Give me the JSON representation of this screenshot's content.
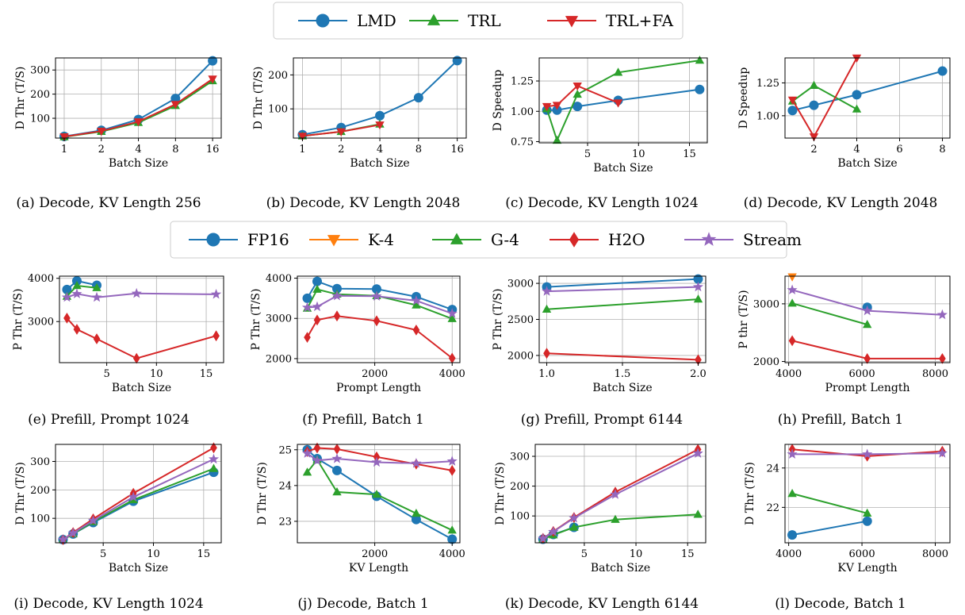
{
  "legends": [
    {
      "entries": [
        {
          "label": "LMD",
          "color": "#1f77b4",
          "marker": "circle"
        },
        {
          "label": "TRL",
          "color": "#2ca02c",
          "marker": "triangle-up"
        },
        {
          "label": "TRL+FA",
          "color": "#d62728",
          "marker": "triangle-down"
        }
      ]
    },
    {
      "entries": [
        {
          "label": "FP16",
          "color": "#1f77b4",
          "marker": "circle"
        },
        {
          "label": "K-4",
          "color": "#ff7f0e",
          "marker": "triangle-down"
        },
        {
          "label": "G-4",
          "color": "#2ca02c",
          "marker": "triangle-up"
        },
        {
          "label": "H2O",
          "color": "#d62728",
          "marker": "diamond"
        },
        {
          "label": "Stream",
          "color": "#9467bd",
          "marker": "star"
        }
      ]
    }
  ],
  "chart_data": [
    {
      "id": "a",
      "type": "line",
      "caption": "(a) Decode, KV Length 256",
      "xlabel": "Batch Size",
      "ylabel": "D Thr (T/S)",
      "xscale": "log2",
      "xlim": [
        0.85,
        18.8
      ],
      "ylim": [
        18,
        350
      ],
      "xticks": [
        1,
        2,
        4,
        8,
        16
      ],
      "xticklabels": [
        "1",
        "2",
        "4",
        "8",
        "16"
      ],
      "yticks": [
        100,
        200,
        300
      ],
      "yticklabels": [
        "100",
        "200",
        "300"
      ],
      "series": [
        {
          "name": "LMD",
          "x": [
            1,
            2,
            4,
            8,
            16
          ],
          "y": [
            25,
            50,
            95,
            182,
            338
          ]
        },
        {
          "name": "TRL",
          "x": [
            1,
            2,
            4,
            8,
            16
          ],
          "y": [
            23,
            45,
            82,
            152,
            255
          ]
        },
        {
          "name": "TRL+FA",
          "x": [
            1,
            2,
            4,
            8,
            16
          ],
          "y": [
            24,
            47,
            86,
            158,
            263
          ]
        }
      ]
    },
    {
      "id": "b",
      "type": "line",
      "caption": "(b) Decode, KV Length 2048",
      "xlabel": "Batch Size",
      "ylabel": "D Thr (T/S)",
      "xscale": "log2",
      "xlim": [
        0.85,
        18.8
      ],
      "ylim": [
        14,
        250
      ],
      "xticks": [
        1,
        2,
        4,
        8,
        16
      ],
      "xticklabels": [
        "1",
        "2",
        "4",
        "8",
        "16"
      ],
      "yticks": [
        100,
        200
      ],
      "yticklabels": [
        "100",
        "200"
      ],
      "series": [
        {
          "name": "LMD",
          "x": [
            1,
            2,
            4,
            8,
            16
          ],
          "y": [
            24,
            45,
            80,
            133,
            242
          ]
        },
        {
          "name": "TRL",
          "x": [
            1,
            2,
            4
          ],
          "y": [
            20,
            33,
            55
          ]
        },
        {
          "name": "TRL+FA",
          "x": [
            1,
            2,
            4
          ],
          "y": [
            20,
            33,
            53
          ]
        }
      ]
    },
    {
      "id": "c",
      "type": "line",
      "caption": "(c) Decode, KV Length 1024",
      "xlabel": "Batch Size",
      "ylabel": "D Speedup",
      "xscale": "linear",
      "xlim": [
        0.25,
        16.75
      ],
      "ylim": [
        0.74,
        1.44
      ],
      "xticks": [
        5,
        10,
        15
      ],
      "xticklabels": [
        "5",
        "10",
        "15"
      ],
      "yticks": [
        0.75,
        1.0,
        1.25
      ],
      "yticklabels": [
        "0.75",
        "1.00",
        "1.25"
      ],
      "series": [
        {
          "name": "LMD",
          "x": [
            1,
            2,
            4,
            8,
            16
          ],
          "y": [
            1.01,
            1.01,
            1.04,
            1.09,
            1.18
          ]
        },
        {
          "name": "TRL",
          "x": [
            1,
            2,
            4,
            8,
            16
          ],
          "y": [
            1.02,
            0.76,
            1.14,
            1.32,
            1.42
          ]
        },
        {
          "name": "TRL+FA",
          "x": [
            1,
            2,
            4,
            8
          ],
          "y": [
            1.04,
            1.05,
            1.21,
            1.07
          ]
        }
      ]
    },
    {
      "id": "d",
      "type": "line",
      "caption": "(d) Decode, KV Length 2048",
      "xlabel": "Batch Size",
      "ylabel": "D Speedup",
      "xscale": "linear",
      "xlim": [
        0.65,
        8.35
      ],
      "ylim": [
        0.83,
        1.44
      ],
      "xticks": [
        2,
        4,
        6,
        8
      ],
      "xticklabels": [
        "2",
        "4",
        "6",
        "8"
      ],
      "yticks": [
        1.0,
        1.25
      ],
      "yticklabels": [
        "1.00",
        "1.25"
      ],
      "series": [
        {
          "name": "LMD",
          "x": [
            1,
            2,
            4,
            8
          ],
          "y": [
            1.04,
            1.08,
            1.16,
            1.34
          ]
        },
        {
          "name": "TRL",
          "x": [
            1,
            2,
            4
          ],
          "y": [
            1.11,
            1.23,
            1.05
          ]
        },
        {
          "name": "TRL+FA",
          "x": [
            1,
            2,
            4
          ],
          "y": [
            1.12,
            0.84,
            1.44
          ]
        }
      ]
    },
    {
      "id": "e",
      "type": "line",
      "caption": "(e) Prefill, Prompt 1024",
      "xlabel": "Batch Size",
      "ylabel": "P Thr (T/S)",
      "xscale": "linear",
      "xlim": [
        0.25,
        16.75
      ],
      "ylim": [
        2050,
        4050
      ],
      "xticks": [
        5,
        10,
        15
      ],
      "xticklabels": [
        "5",
        "10",
        "15"
      ],
      "yticks": [
        3000,
        4000
      ],
      "yticklabels": [
        "3000",
        "4000"
      ],
      "series": [
        {
          "name": "FP16",
          "x": [
            1,
            2,
            4
          ],
          "y": [
            3740,
            3940,
            3840
          ]
        },
        {
          "name": "G-4",
          "x": [
            1,
            2,
            4
          ],
          "y": [
            3580,
            3830,
            3780
          ]
        },
        {
          "name": "H2O",
          "x": [
            1,
            2,
            4,
            8,
            16
          ],
          "y": [
            3080,
            2820,
            2600,
            2150,
            2670
          ]
        },
        {
          "name": "Stream",
          "x": [
            1,
            2,
            4,
            8,
            16
          ],
          "y": [
            3560,
            3640,
            3560,
            3650,
            3630
          ]
        }
      ]
    },
    {
      "id": "f",
      "type": "line",
      "caption": "(f) Prefill, Batch 1",
      "xlabel": "Prompt Length",
      "ylabel": "P Thr (T/S)",
      "xscale": "linear",
      "xlim": [
        0,
        4200
      ],
      "ylim": [
        1900,
        4050
      ],
      "xticks": [
        2000,
        4000
      ],
      "xticklabels": [
        "2000",
        "4000"
      ],
      "yticks": [
        2000,
        3000,
        4000
      ],
      "yticklabels": [
        "2000",
        "3000",
        "4000"
      ],
      "series": [
        {
          "name": "FP16",
          "x": [
            256,
            512,
            1024,
            2048,
            3072,
            4000
          ],
          "y": [
            3500,
            3920,
            3740,
            3730,
            3540,
            3220
          ]
        },
        {
          "name": "G-4",
          "x": [
            256,
            512,
            1024,
            2048,
            3072,
            4000
          ],
          "y": [
            3250,
            3720,
            3600,
            3560,
            3330,
            2990
          ]
        },
        {
          "name": "H2O",
          "x": [
            256,
            512,
            1024,
            2048,
            3072,
            4000
          ],
          "y": [
            2530,
            2960,
            3060,
            2940,
            2710,
            2010
          ]
        },
        {
          "name": "Stream",
          "x": [
            256,
            512,
            1024,
            2048,
            3072,
            4000
          ],
          "y": [
            3270,
            3290,
            3560,
            3550,
            3440,
            3120
          ]
        }
      ]
    },
    {
      "id": "g",
      "type": "line",
      "caption": "(g) Prefill, Prompt 6144",
      "xlabel": "Batch Size",
      "ylabel": "P Thr (T/S)",
      "xscale": "linear",
      "xlim": [
        0.95,
        2.05
      ],
      "ylim": [
        1900,
        3100
      ],
      "xticks": [
        1.0,
        1.5,
        2.0
      ],
      "xticklabels": [
        "1.0",
        "1.5",
        "2.0"
      ],
      "yticks": [
        2000,
        2500,
        3000
      ],
      "yticklabels": [
        "2000",
        "2500",
        "3000"
      ],
      "series": [
        {
          "name": "FP16",
          "x": [
            1,
            2
          ],
          "y": [
            2950,
            3060
          ]
        },
        {
          "name": "G-4",
          "x": [
            1,
            2
          ],
          "y": [
            2640,
            2780
          ]
        },
        {
          "name": "H2O",
          "x": [
            1,
            2
          ],
          "y": [
            2030,
            1940
          ]
        },
        {
          "name": "Stream",
          "x": [
            1,
            2
          ],
          "y": [
            2890,
            2950
          ]
        }
      ]
    },
    {
      "id": "h",
      "type": "line",
      "caption": "(h) Prefill, Batch 1",
      "xlabel": "Prompt Length",
      "ylabel": "P thr (T/S)",
      "xscale": "linear",
      "xlim": [
        3900,
        8400
      ],
      "ylim": [
        1980,
        3480
      ],
      "xticks": [
        4000,
        6000,
        8000
      ],
      "xticklabels": [
        "4000",
        "6000",
        "8000"
      ],
      "yticks": [
        2000,
        3000
      ],
      "yticklabels": [
        "2000",
        "3000"
      ],
      "series": [
        {
          "name": "FP16",
          "x": [
            6144
          ],
          "y": [
            2940
          ]
        },
        {
          "name": "K-4",
          "x": [
            4096
          ],
          "y": [
            3470
          ]
        },
        {
          "name": "G-4",
          "x": [
            4096,
            6144
          ],
          "y": [
            3010,
            2640
          ]
        },
        {
          "name": "H2O",
          "x": [
            4096,
            6144,
            8192
          ],
          "y": [
            2360,
            2050,
            2050
          ]
        },
        {
          "name": "Stream",
          "x": [
            4096,
            6144,
            8192
          ],
          "y": [
            3240,
            2880,
            2810
          ]
        }
      ]
    },
    {
      "id": "i",
      "type": "line",
      "caption": "(i) Decode, KV Length 1024",
      "xlabel": "Batch Size",
      "ylabel": "D Thr (T/S)",
      "xscale": "linear",
      "xlim": [
        0.25,
        16.75
      ],
      "ylim": [
        14,
        360
      ],
      "xticks": [
        5,
        10,
        15
      ],
      "xticklabels": [
        "5",
        "10",
        "15"
      ],
      "yticks": [
        100,
        200,
        300
      ],
      "yticklabels": [
        "100",
        "200",
        "300"
      ],
      "series": [
        {
          "name": "FP16",
          "x": [
            1,
            2,
            4,
            8,
            16
          ],
          "y": [
            25,
            45,
            85,
            160,
            262
          ]
        },
        {
          "name": "G-4",
          "x": [
            1,
            2,
            4,
            8,
            16
          ],
          "y": [
            25,
            45,
            88,
            165,
            275
          ]
        },
        {
          "name": "H2O",
          "x": [
            1,
            2,
            4,
            8,
            16
          ],
          "y": [
            25,
            50,
            98,
            188,
            348
          ]
        },
        {
          "name": "Stream",
          "x": [
            1,
            2,
            4,
            8,
            16
          ],
          "y": [
            25,
            48,
            92,
            175,
            308
          ]
        }
      ]
    },
    {
      "id": "j",
      "type": "line",
      "caption": "(j) Decode, Batch 1",
      "xlabel": "KV Length",
      "ylabel": "D Thr (T/S)",
      "xscale": "linear",
      "xlim": [
        0,
        4200
      ],
      "ylim": [
        22.4,
        25.15
      ],
      "xticks": [
        2000,
        4000
      ],
      "xticklabels": [
        "2000",
        "4000"
      ],
      "yticks": [
        23,
        24,
        25
      ],
      "yticklabels": [
        "23",
        "24",
        "25"
      ],
      "series": [
        {
          "name": "FP16",
          "x": [
            256,
            512,
            1024,
            2048,
            3072,
            4000
          ],
          "y": [
            25.0,
            24.75,
            24.42,
            23.7,
            23.05,
            22.5
          ]
        },
        {
          "name": "G-4",
          "x": [
            256,
            512,
            1024,
            2048,
            3072,
            4000
          ],
          "y": [
            24.37,
            24.72,
            23.82,
            23.75,
            23.22,
            22.75
          ]
        },
        {
          "name": "H2O",
          "x": [
            256,
            512,
            1024,
            2048,
            3072,
            4000
          ],
          "y": [
            24.95,
            25.05,
            25.02,
            24.8,
            24.6,
            24.42
          ]
        },
        {
          "name": "Stream",
          "x": [
            256,
            512,
            1024,
            2048,
            3072,
            4000
          ],
          "y": [
            24.9,
            24.7,
            24.75,
            24.65,
            24.62,
            24.68
          ]
        }
      ]
    },
    {
      "id": "k",
      "type": "line",
      "caption": "(k) Decode, KV Length 6144",
      "xlabel": "Batch Size",
      "ylabel": "D Thr (T/S)",
      "xscale": "linear",
      "xlim": [
        0.25,
        16.75
      ],
      "ylim": [
        10,
        340
      ],
      "xticks": [
        5,
        10,
        15
      ],
      "xticklabels": [
        "5",
        "10",
        "15"
      ],
      "yticks": [
        100,
        200,
        300
      ],
      "yticklabels": [
        "100",
        "200",
        "300"
      ],
      "series": [
        {
          "name": "FP16",
          "x": [
            1,
            2,
            4
          ],
          "y": [
            22,
            38,
            62
          ]
        },
        {
          "name": "G-4",
          "x": [
            1,
            2,
            4,
            8,
            16
          ],
          "y": [
            22,
            36,
            62,
            88,
            105
          ]
        },
        {
          "name": "H2O",
          "x": [
            1,
            2,
            4,
            8,
            16
          ],
          "y": [
            25,
            48,
            95,
            180,
            323
          ]
        },
        {
          "name": "Stream",
          "x": [
            1,
            2,
            4,
            8,
            16
          ],
          "y": [
            24,
            47,
            93,
            172,
            310
          ]
        }
      ]
    },
    {
      "id": "l",
      "type": "line",
      "caption": "(l) Decode, Batch 1",
      "xlabel": "KV Length",
      "ylabel": "D Thr (T/S)",
      "xscale": "linear",
      "xlim": [
        3900,
        8400
      ],
      "ylim": [
        20.2,
        25.2
      ],
      "xticks": [
        4000,
        6000,
        8000
      ],
      "xticklabels": [
        "4000",
        "6000",
        "8000"
      ],
      "yticks": [
        22,
        24
      ],
      "yticklabels": [
        "22",
        "24"
      ],
      "series": [
        {
          "name": "FP16",
          "x": [
            4096,
            6144
          ],
          "y": [
            20.6,
            21.3
          ]
        },
        {
          "name": "G-4",
          "x": [
            4096,
            6144
          ],
          "y": [
            22.7,
            21.7
          ]
        },
        {
          "name": "H2O",
          "x": [
            4096,
            6144,
            8192
          ],
          "y": [
            24.95,
            24.6,
            24.85
          ]
        },
        {
          "name": "Stream",
          "x": [
            4096,
            6144,
            8192
          ],
          "y": [
            24.7,
            24.7,
            24.75
          ]
        }
      ]
    }
  ]
}
